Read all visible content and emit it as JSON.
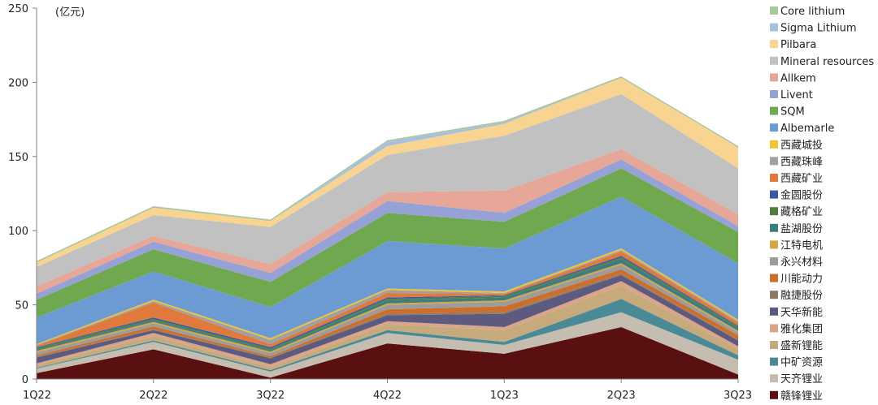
{
  "chart_data": {
    "type": "area",
    "stacked": true,
    "unit_label": "(亿元)",
    "categories": [
      "1Q22",
      "2Q22",
      "3Q22",
      "4Q22",
      "1Q23",
      "2Q23",
      "3Q23"
    ],
    "ylim": [
      0,
      250
    ],
    "yticks": [
      0,
      50,
      100,
      150,
      200,
      250
    ],
    "grid": false,
    "legend_position": "right",
    "series": [
      {
        "name": "赣锋锂业",
        "color": "#5a1010",
        "values": [
          4,
          20,
          1,
          24,
          17,
          35,
          3
        ]
      },
      {
        "name": "天齐锂业",
        "color": "#c4bdb0",
        "values": [
          3,
          5,
          4,
          7,
          6,
          10,
          10
        ]
      },
      {
        "name": "中矿资源",
        "color": "#4a8a96",
        "values": [
          0.5,
          1,
          1,
          2,
          2,
          9,
          3
        ]
      },
      {
        "name": "盛新锂能",
        "color": "#c7aa7c",
        "values": [
          2,
          3,
          2,
          4,
          8,
          9,
          4
        ]
      },
      {
        "name": "雅化集团",
        "color": "#d9a48a",
        "values": [
          1,
          2,
          2,
          2,
          2,
          3,
          2
        ]
      },
      {
        "name": "天华新能",
        "color": "#5c5a7e",
        "values": [
          4,
          2,
          4,
          4,
          9,
          4,
          4
        ]
      },
      {
        "name": "融捷股份",
        "color": "#8a7a66",
        "values": [
          0.5,
          0.5,
          0.5,
          1,
          1,
          1,
          0.5
        ]
      },
      {
        "name": "川能动力",
        "color": "#cc6f2c",
        "values": [
          1,
          2,
          1,
          3,
          4,
          3,
          3
        ]
      },
      {
        "name": "永兴材料",
        "color": "#9c9c9c",
        "values": [
          2,
          2,
          2,
          3,
          3,
          3,
          2
        ]
      },
      {
        "name": "江特电机",
        "color": "#d6a640",
        "values": [
          1,
          1,
          1,
          1,
          1,
          1,
          1
        ]
      },
      {
        "name": "盐湖股份",
        "color": "#3f7c82",
        "values": [
          1,
          1,
          1,
          2,
          2,
          3,
          2
        ]
      },
      {
        "name": "藏格矿业",
        "color": "#4f7e3f",
        "values": [
          1,
          1,
          1,
          1,
          1,
          1,
          1
        ]
      },
      {
        "name": "金圆股份",
        "color": "#3a58a8",
        "values": [
          0.5,
          1,
          1,
          1,
          0.5,
          1,
          0.5
        ]
      },
      {
        "name": "西藏矿业",
        "color": "#e07a3c",
        "values": [
          1,
          10,
          2,
          3,
          1,
          3,
          2
        ]
      },
      {
        "name": "西藏珠峰",
        "color": "#a0a0a0",
        "values": [
          0.5,
          1,
          3,
          2,
          0.5,
          1,
          1
        ]
      },
      {
        "name": "西藏城投",
        "color": "#f1c232",
        "values": [
          0.5,
          1,
          1,
          1,
          1,
          1,
          1
        ]
      },
      {
        "name": "Albemarle",
        "color": "#6b9bd2",
        "values": [
          18,
          19,
          21,
          32,
          29,
          35,
          38
        ]
      },
      {
        "name": "SQM",
        "color": "#70a850",
        "values": [
          12,
          15,
          17,
          19,
          18,
          19,
          21
        ]
      },
      {
        "name": "Livent",
        "color": "#96a2d6",
        "values": [
          4,
          5,
          6,
          8,
          6,
          6,
          4
        ]
      },
      {
        "name": "Allkem",
        "color": "#e6a698",
        "values": [
          5,
          4,
          6,
          6,
          15,
          7,
          8
        ]
      },
      {
        "name": "Mineral resources",
        "color": "#c1c1c1",
        "values": [
          13,
          14,
          25,
          25,
          37,
          37,
          31
        ]
      },
      {
        "name": "Pilbara",
        "color": "#f8d490",
        "values": [
          3,
          5,
          4,
          6,
          8,
          11,
          14
        ]
      },
      {
        "name": "Sigma Lithium",
        "color": "#a8c0e0",
        "values": [
          0,
          0,
          0,
          3,
          1,
          0,
          0
        ]
      },
      {
        "name": "Core lithium",
        "color": "#a8c79a",
        "values": [
          1,
          1,
          1,
          1,
          1,
          1,
          1
        ]
      }
    ]
  }
}
